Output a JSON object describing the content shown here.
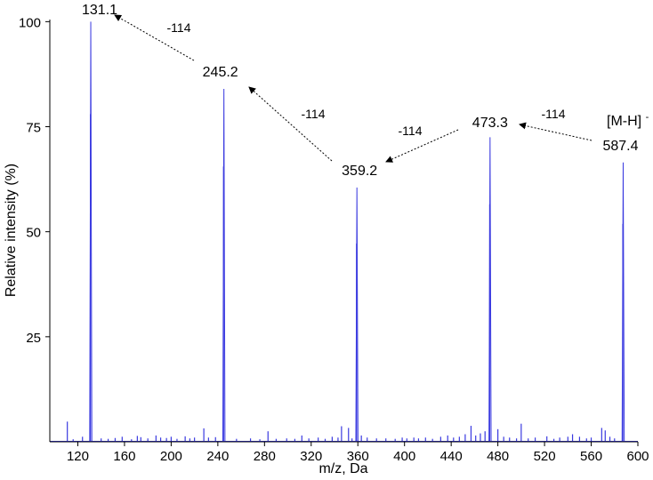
{
  "chart_data": {
    "type": "line",
    "xlabel": "m/z, Da",
    "ylabel": "Relative intensity (%)",
    "xlim": [
      96,
      600
    ],
    "ylim": [
      0,
      100
    ],
    "x_ticks": [
      120,
      160,
      200,
      240,
      280,
      320,
      360,
      400,
      440,
      480,
      520,
      560,
      600
    ],
    "y_ticks": [
      25,
      50,
      75,
      100
    ],
    "grid": false,
    "line_color": "#3a3ae0",
    "major_peaks": [
      {
        "mz": 131.1,
        "intensity": 100,
        "label": "131.1"
      },
      {
        "mz": 245.2,
        "intensity": 84,
        "label": "245.2"
      },
      {
        "mz": 359.2,
        "intensity": 60.5,
        "label": "359.2"
      },
      {
        "mz": 473.3,
        "intensity": 72.5,
        "label": "473.3"
      },
      {
        "mz": 587.4,
        "intensity": 66.5,
        "label": "587.4"
      }
    ],
    "minor_peaks": [
      {
        "mz": 111,
        "intensity": 4.8
      },
      {
        "mz": 116,
        "intensity": 0.6
      },
      {
        "mz": 124,
        "intensity": 1.2
      },
      {
        "mz": 140,
        "intensity": 0.8
      },
      {
        "mz": 146,
        "intensity": 0.7
      },
      {
        "mz": 152,
        "intensity": 0.9
      },
      {
        "mz": 158,
        "intensity": 1.2
      },
      {
        "mz": 166,
        "intensity": 0.6
      },
      {
        "mz": 171,
        "intensity": 1.4
      },
      {
        "mz": 174,
        "intensity": 1.1
      },
      {
        "mz": 180,
        "intensity": 0.8
      },
      {
        "mz": 187,
        "intensity": 1.5
      },
      {
        "mz": 191,
        "intensity": 1.0
      },
      {
        "mz": 196,
        "intensity": 0.9
      },
      {
        "mz": 200,
        "intensity": 1.2
      },
      {
        "mz": 205,
        "intensity": 0.7
      },
      {
        "mz": 212,
        "intensity": 1.3
      },
      {
        "mz": 216,
        "intensity": 0.8
      },
      {
        "mz": 220,
        "intensity": 1.0
      },
      {
        "mz": 228,
        "intensity": 3.2
      },
      {
        "mz": 232,
        "intensity": 1.0
      },
      {
        "mz": 238,
        "intensity": 1.1
      },
      {
        "mz": 256,
        "intensity": 0.7
      },
      {
        "mz": 268,
        "intensity": 0.8
      },
      {
        "mz": 276,
        "intensity": 0.6
      },
      {
        "mz": 283,
        "intensity": 2.5
      },
      {
        "mz": 290,
        "intensity": 0.7
      },
      {
        "mz": 299,
        "intensity": 0.8
      },
      {
        "mz": 306,
        "intensity": 0.7
      },
      {
        "mz": 312,
        "intensity": 1.5
      },
      {
        "mz": 318,
        "intensity": 0.8
      },
      {
        "mz": 326,
        "intensity": 1.0
      },
      {
        "mz": 332,
        "intensity": 0.7
      },
      {
        "mz": 338,
        "intensity": 1.2
      },
      {
        "mz": 343,
        "intensity": 1.0
      },
      {
        "mz": 346,
        "intensity": 3.7
      },
      {
        "mz": 352,
        "intensity": 3.3
      },
      {
        "mz": 355,
        "intensity": 0.8
      },
      {
        "mz": 363,
        "intensity": 1.5
      },
      {
        "mz": 368,
        "intensity": 1.0
      },
      {
        "mz": 376,
        "intensity": 0.8
      },
      {
        "mz": 384,
        "intensity": 0.8
      },
      {
        "mz": 392,
        "intensity": 0.7
      },
      {
        "mz": 398,
        "intensity": 1.0
      },
      {
        "mz": 402,
        "intensity": 0.8
      },
      {
        "mz": 408,
        "intensity": 1.0
      },
      {
        "mz": 412,
        "intensity": 0.8
      },
      {
        "mz": 418,
        "intensity": 1.0
      },
      {
        "mz": 424,
        "intensity": 0.7
      },
      {
        "mz": 431,
        "intensity": 1.2
      },
      {
        "mz": 437,
        "intensity": 1.5
      },
      {
        "mz": 442,
        "intensity": 1.0
      },
      {
        "mz": 447,
        "intensity": 1.2
      },
      {
        "mz": 452,
        "intensity": 1.8
      },
      {
        "mz": 457,
        "intensity": 3.8
      },
      {
        "mz": 461,
        "intensity": 1.5
      },
      {
        "mz": 465,
        "intensity": 2.0
      },
      {
        "mz": 469,
        "intensity": 2.5
      },
      {
        "mz": 480,
        "intensity": 3.0
      },
      {
        "mz": 485,
        "intensity": 1.2
      },
      {
        "mz": 490,
        "intensity": 1.0
      },
      {
        "mz": 496,
        "intensity": 0.8
      },
      {
        "mz": 500,
        "intensity": 4.3
      },
      {
        "mz": 506,
        "intensity": 0.8
      },
      {
        "mz": 512,
        "intensity": 1.0
      },
      {
        "mz": 522,
        "intensity": 1.3
      },
      {
        "mz": 528,
        "intensity": 0.7
      },
      {
        "mz": 533,
        "intensity": 1.0
      },
      {
        "mz": 540,
        "intensity": 1.2
      },
      {
        "mz": 544,
        "intensity": 1.8
      },
      {
        "mz": 550,
        "intensity": 1.2
      },
      {
        "mz": 556,
        "intensity": 0.8
      },
      {
        "mz": 560,
        "intensity": 1.0
      },
      {
        "mz": 569,
        "intensity": 3.3
      },
      {
        "mz": 572,
        "intensity": 2.7
      },
      {
        "mz": 576,
        "intensity": 1.2
      },
      {
        "mz": 580,
        "intensity": 0.8
      }
    ],
    "annotations": {
      "precursor_label": "[M-H]",
      "precursor_superscript": "-",
      "losses": [
        {
          "from_mz": 587.4,
          "to_mz": 473.3,
          "label": "-114"
        },
        {
          "from_mz": 473.3,
          "to_mz": 359.2,
          "label": "-114"
        },
        {
          "from_mz": 359.2,
          "to_mz": 245.2,
          "label": "-114"
        },
        {
          "from_mz": 245.2,
          "to_mz": 131.1,
          "label": "-114"
        }
      ]
    }
  }
}
